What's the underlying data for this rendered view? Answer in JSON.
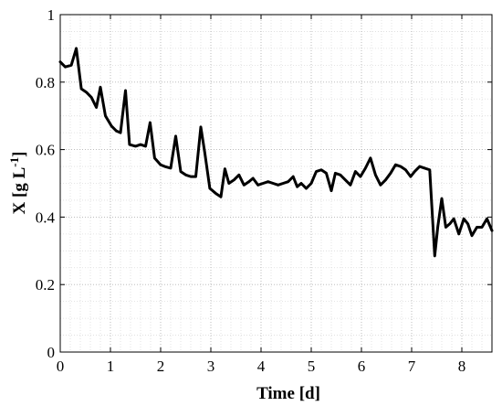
{
  "chart_data": {
    "type": "line",
    "title": "",
    "xlabel": "Time [d]",
    "ylabel": {
      "base": "X [g L",
      "sup": "-1",
      "close": "]"
    },
    "xlim": [
      0,
      8.6
    ],
    "ylim": [
      0,
      1
    ],
    "xticks": [
      0,
      1,
      2,
      3,
      4,
      5,
      6,
      7,
      8
    ],
    "yticks": [
      0,
      0.2,
      0.4,
      0.6,
      0.8,
      1
    ],
    "ytick_labels": [
      "0",
      "0.2",
      "0.4",
      "0.6",
      "0.8",
      "1"
    ],
    "grid": "major and minor, dotted",
    "line_color": "#000000",
    "series": [
      {
        "x": [
          0,
          0.1,
          0.22,
          0.32,
          0.42,
          0.52,
          0.62,
          0.72,
          0.8,
          0.9,
          1.02,
          1.12,
          1.2,
          1.3,
          1.38,
          1.5,
          1.6,
          1.7,
          1.79,
          1.88,
          2.0,
          2.08,
          2.2,
          2.3,
          2.4,
          2.5,
          2.6,
          2.7,
          2.8,
          2.88,
          2.98,
          3.1,
          3.2,
          3.28,
          3.36,
          3.46,
          3.56,
          3.66,
          3.76,
          3.84,
          3.94,
          4.04,
          4.14,
          4.24,
          4.34,
          4.44,
          4.54,
          4.64,
          4.72,
          4.8,
          4.9,
          5.0,
          5.1,
          5.2,
          5.3,
          5.4,
          5.48,
          5.58,
          5.68,
          5.78,
          5.88,
          5.98,
          6.08,
          6.18,
          6.28,
          6.38,
          6.48,
          6.58,
          6.68,
          6.78,
          6.88,
          6.98,
          7.06,
          7.16,
          7.26,
          7.36,
          7.46,
          7.52,
          7.6,
          7.68,
          7.76,
          7.84,
          7.94,
          8.04,
          8.12,
          8.2,
          8.3,
          8.4,
          8.5,
          8.6
        ],
        "y": [
          0.86,
          0.845,
          0.85,
          0.9,
          0.78,
          0.77,
          0.755,
          0.725,
          0.785,
          0.7,
          0.67,
          0.655,
          0.65,
          0.775,
          0.615,
          0.61,
          0.615,
          0.61,
          0.68,
          0.575,
          0.555,
          0.55,
          0.545,
          0.64,
          0.535,
          0.525,
          0.52,
          0.52,
          0.667,
          0.59,
          0.485,
          0.47,
          0.46,
          0.543,
          0.5,
          0.51,
          0.525,
          0.495,
          0.505,
          0.515,
          0.495,
          0.5,
          0.505,
          0.5,
          0.495,
          0.5,
          0.505,
          0.52,
          0.49,
          0.5,
          0.485,
          0.5,
          0.535,
          0.54,
          0.53,
          0.478,
          0.53,
          0.525,
          0.51,
          0.495,
          0.535,
          0.52,
          0.545,
          0.575,
          0.525,
          0.495,
          0.51,
          0.53,
          0.555,
          0.55,
          0.54,
          0.52,
          0.535,
          0.55,
          0.545,
          0.54,
          0.285,
          0.37,
          0.455,
          0.37,
          0.38,
          0.395,
          0.35,
          0.395,
          0.38,
          0.345,
          0.37,
          0.37,
          0.395,
          0.36
        ]
      }
    ]
  }
}
